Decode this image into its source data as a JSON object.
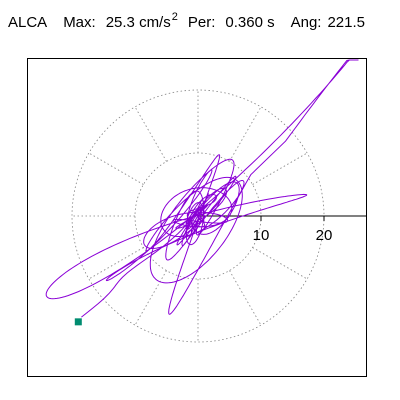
{
  "header": {
    "station": "ALCA",
    "max_label": "Max:",
    "max_value": "25.3 cm/s",
    "max_exp": "2",
    "per_label": "Per:",
    "per_value": "0.360 s",
    "ang_label": "Ang:",
    "ang_value": "221.5"
  },
  "colors": {
    "trace": "#8a00d6",
    "marker": "#008c70",
    "grid": "#808080",
    "axis": "#000000",
    "frame": "#000000"
  },
  "chart_data": {
    "type": "polar-particle-motion",
    "title": "ALCA   Max:   25.3 cm/s 2   Per:  0.360 s   Ang: 221.5",
    "max_value": 25.3,
    "units": "cm/s^2",
    "period_s": 0.36,
    "angle_deg": 221.5,
    "rings": [
      10,
      20
    ],
    "ring_tick_labels": [
      "10",
      "20"
    ],
    "radial_spokes_deg": [
      0,
      30,
      60,
      90,
      120,
      150,
      180,
      210,
      240,
      270,
      300,
      330
    ],
    "axis_range": [
      -27,
      27
    ],
    "grid": "dotted polar",
    "end_marker": {
      "x": -19.0,
      "y": -16.8
    },
    "trace_seed": 7
  }
}
